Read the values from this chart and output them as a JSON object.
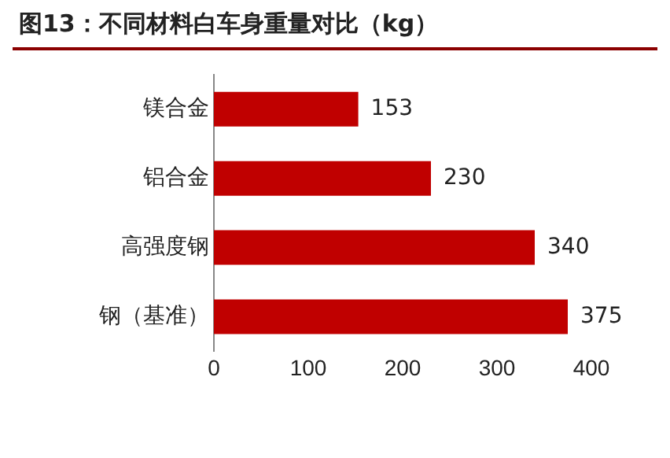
{
  "chart_data": {
    "type": "bar",
    "orientation": "horizontal",
    "title": "图13：不同材料白车身重量对比（kg）",
    "categories": [
      "镁合金",
      "铝合金",
      "高强度钢",
      "钢（基准）"
    ],
    "values": [
      153,
      230,
      340,
      375
    ],
    "color": "#c00000",
    "xlim": [
      0,
      400
    ],
    "xticks": [
      0,
      100,
      200,
      300,
      400
    ],
    "grid": false,
    "legend": false,
    "data_labels": true
  }
}
